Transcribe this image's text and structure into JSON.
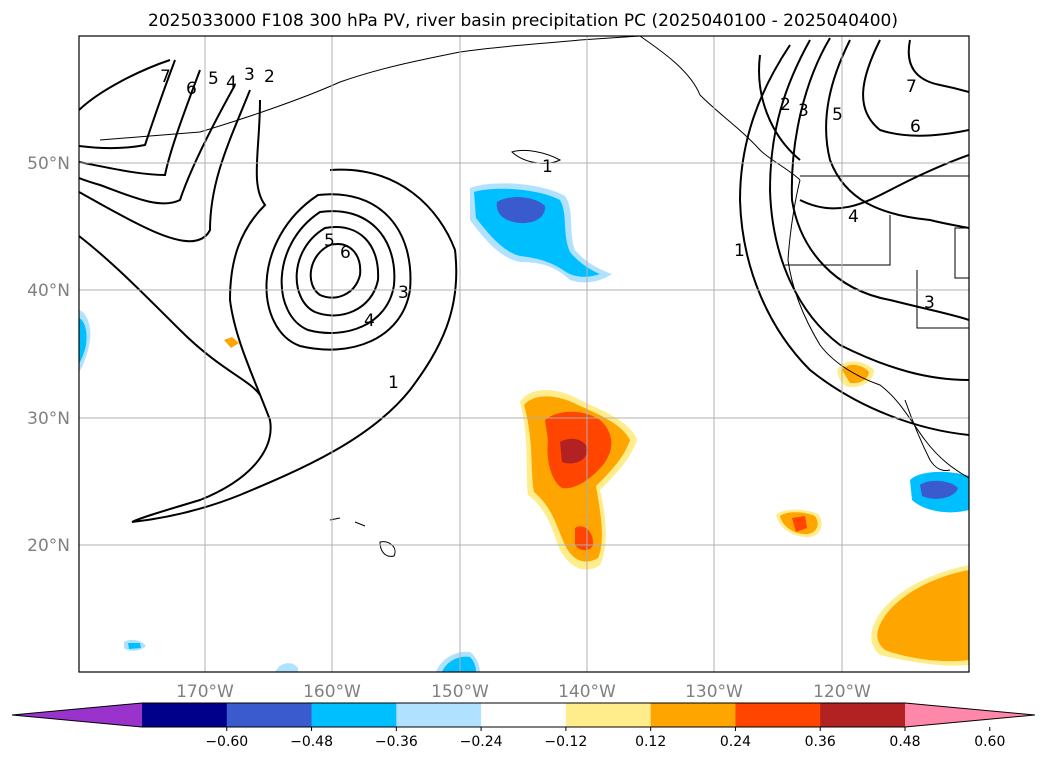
{
  "title": "2025033000 F108 300 hPa PV, river basin precipitation PC (2025040100 - 2025040400)",
  "lat_labels": [
    "50°N",
    "40°N",
    "30°N",
    "20°N"
  ],
  "lon_labels": [
    "170°W",
    "160°W",
    "150°W",
    "140°W",
    "130°W",
    "120°W"
  ],
  "contour_labels": [
    "7",
    "6",
    "5",
    "4",
    "3",
    "2",
    "5",
    "6",
    "3",
    "4",
    "1",
    "1",
    "2",
    "3",
    "5",
    "7",
    "6",
    "4",
    "1",
    "3"
  ],
  "colorbar": {
    "ticks": [
      "−0.60",
      "−0.48",
      "−0.36",
      "−0.24",
      "−0.12",
      "0.12",
      "0.24",
      "0.36",
      "0.48",
      "0.60"
    ],
    "colors": [
      "#9933cc",
      "#00008b",
      "#3a5bcd",
      "#00bfff",
      "#b0e2ff",
      "#ffffff",
      "#ffec8b",
      "#ffa500",
      "#ff4500",
      "#b22222",
      "#ff88aa"
    ]
  }
}
